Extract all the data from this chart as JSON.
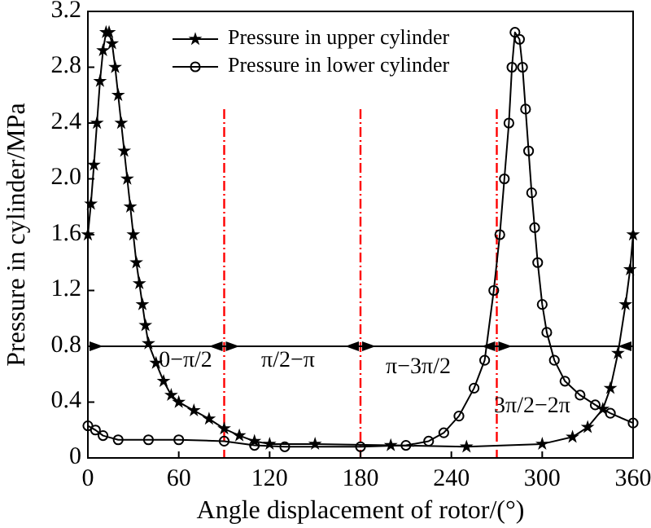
{
  "chart_data": {
    "type": "line",
    "xlabel": "Angle displacement of rotor/(°)",
    "ylabel": "Pressure in cylinder/MPa",
    "xlim": [
      0,
      360
    ],
    "xticks": [
      0,
      60,
      120,
      180,
      240,
      300,
      360
    ],
    "ylim": [
      0,
      3.2
    ],
    "yticks": [
      0,
      0.4,
      0.8,
      1.2,
      1.6,
      {
        "value": 2,
        "label": "2.0"
      },
      2.4,
      2.8,
      3.2
    ],
    "legend": "top",
    "grid": false,
    "line_style": "solid",
    "series": [
      {
        "name": "Pressure in upper cylinder",
        "color": "#000000",
        "marker": "star",
        "x": [
          0,
          2,
          4,
          6,
          8,
          10,
          12,
          14,
          16,
          18,
          20,
          22,
          24,
          26,
          28,
          30,
          32,
          34,
          36,
          38,
          40,
          45,
          50,
          55,
          60,
          70,
          80,
          90,
          100,
          110,
          120,
          150,
          200,
          250,
          300,
          320,
          330,
          340,
          345,
          350,
          355,
          358,
          360
        ],
        "values": [
          1.6,
          1.82,
          2.1,
          2.4,
          2.7,
          2.92,
          3.05,
          3.05,
          2.97,
          2.8,
          2.6,
          2.4,
          2.2,
          2.0,
          1.8,
          1.6,
          1.4,
          1.25,
          1.1,
          0.95,
          0.82,
          0.68,
          0.55,
          0.45,
          0.4,
          0.34,
          0.28,
          0.21,
          0.16,
          0.12,
          0.1,
          0.1,
          0.09,
          0.08,
          0.1,
          0.15,
          0.22,
          0.35,
          0.5,
          0.75,
          1.1,
          1.35,
          1.6
        ]
      },
      {
        "name": "Pressure in lower cylinder",
        "color": "#000000",
        "marker": "circle",
        "x": [
          0,
          5,
          10,
          20,
          40,
          60,
          90,
          110,
          130,
          180,
          210,
          225,
          235,
          245,
          255,
          262,
          268,
          272,
          275,
          278,
          280,
          282,
          285,
          287,
          289,
          291,
          293,
          295,
          297,
          300,
          303,
          308,
          315,
          325,
          335,
          345,
          360
        ],
        "values": [
          0.23,
          0.2,
          0.16,
          0.13,
          0.13,
          0.13,
          0.12,
          0.09,
          0.08,
          0.08,
          0.09,
          0.12,
          0.18,
          0.3,
          0.5,
          0.7,
          1.2,
          1.6,
          2.0,
          2.4,
          2.8,
          3.05,
          3.0,
          2.8,
          2.5,
          2.2,
          1.9,
          1.65,
          1.4,
          1.1,
          0.9,
          0.7,
          0.55,
          0.45,
          0.38,
          0.32,
          0.25
        ]
      }
    ],
    "ref_lines": [
      {
        "axis": "x",
        "value": 90,
        "color": "#ff0000",
        "line_style": "dashed"
      },
      {
        "axis": "x",
        "value": 180,
        "color": "#ff0000",
        "line_style": "dashed"
      },
      {
        "axis": "x",
        "value": 270,
        "color": "#ff0000",
        "line_style": "dashed"
      },
      {
        "axis": "y",
        "value": 0.8,
        "color": "#000000",
        "line_style": "solid"
      }
    ],
    "annotations": [
      "0−π/2",
      "π/2−π",
      "π−3π/2",
      "3π/2−2π"
    ]
  }
}
